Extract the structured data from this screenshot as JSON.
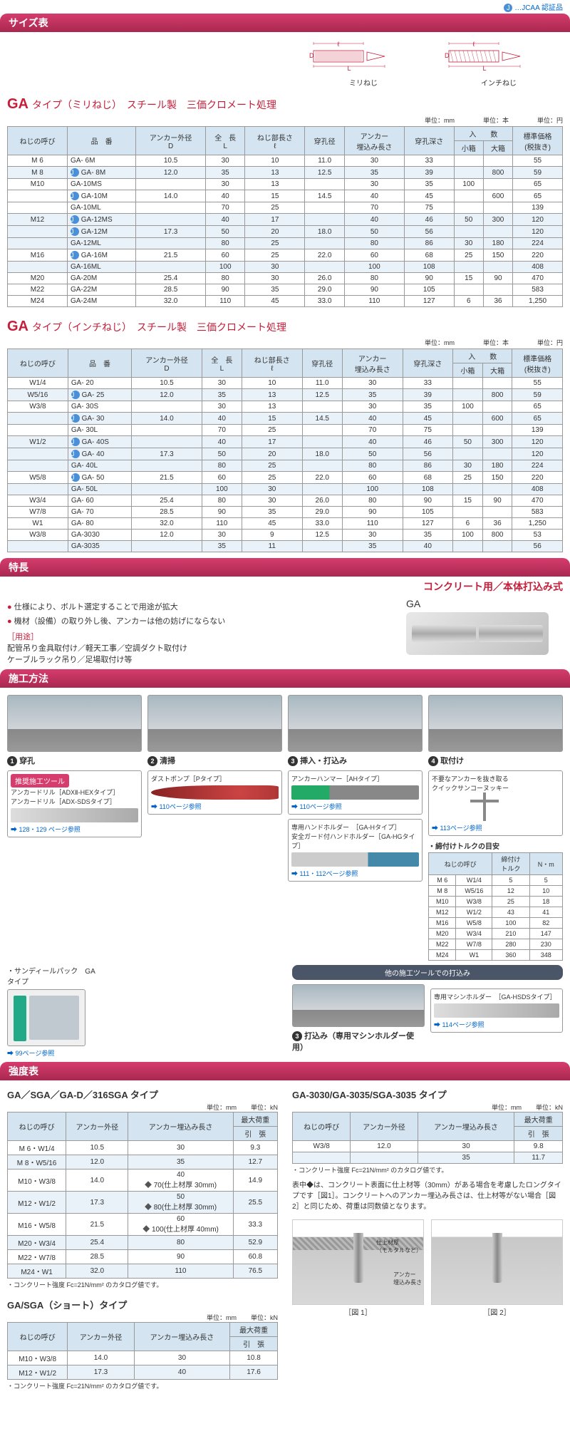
{
  "jcaa": "…JCAA 認証品",
  "sections": {
    "size": "サイズ表",
    "feature": "特長",
    "construction": "施工方法",
    "strength": "強度表"
  },
  "diagrams": {
    "metric": "ミリねじ",
    "inch": "インチねじ",
    "labels": {
      "l": "ℓ",
      "L": "L",
      "D": "D"
    }
  },
  "colors": {
    "brand": "#c41e3a",
    "headerBg1": "#d63c6d",
    "headerBg2": "#a82850",
    "thBg": "#d4e4f0",
    "altBg": "#eaf2f9"
  },
  "type1": {
    "ga": "GA",
    "sub": "タイプ（ミリねじ）　スチール製　三価クロメート処理"
  },
  "type2": {
    "ga": "GA",
    "sub": "タイプ（インチねじ）　スチール製　三価クロメート処理"
  },
  "units": {
    "mm": "単位：mm",
    "hon": "単位：本",
    "yen": "単位：円",
    "kn": "単位：kN"
  },
  "headers": [
    "ねじの呼び",
    "品　番",
    "アンカー外径\nD",
    "全　長\nL",
    "ねじ部長さ\nℓ",
    "穿孔径",
    "アンカー\n埋込み長さ",
    "穿孔深さ",
    "小箱",
    "大箱",
    "標準価格\n(税抜き)"
  ],
  "headers_nyu": "入　　数",
  "metric_rows": [
    [
      "M 6",
      "GA-  6M",
      "10.5",
      "30",
      "10",
      "11.0",
      "30",
      "33",
      "",
      "",
      "55"
    ],
    [
      "M 8",
      "GA-  8M",
      "12.0",
      "35",
      "13",
      "12.5",
      "35",
      "39",
      "",
      "800",
      "59"
    ],
    [
      "M10",
      "GA-10MS",
      "",
      "30",
      "13",
      "",
      "30",
      "35",
      "100",
      "",
      "65"
    ],
    [
      "",
      "GA-10M",
      "14.0",
      "40",
      "15",
      "14.5",
      "40",
      "45",
      "",
      "600",
      "65"
    ],
    [
      "",
      "GA-10ML",
      "",
      "70",
      "25",
      "",
      "70",
      "75",
      "",
      "",
      "139"
    ],
    [
      "M12",
      "GA-12MS",
      "",
      "40",
      "17",
      "",
      "40",
      "46",
      "50",
      "300",
      "120"
    ],
    [
      "",
      "GA-12M",
      "17.3",
      "50",
      "20",
      "18.0",
      "50",
      "56",
      "",
      "",
      "120"
    ],
    [
      "",
      "GA-12ML",
      "",
      "80",
      "25",
      "",
      "80",
      "86",
      "30",
      "180",
      "224"
    ],
    [
      "M16",
      "GA-16M",
      "21.5",
      "60",
      "25",
      "22.0",
      "60",
      "68",
      "25",
      "150",
      "220"
    ],
    [
      "",
      "GA-16ML",
      "",
      "100",
      "30",
      "",
      "100",
      "108",
      "",
      "",
      "408"
    ],
    [
      "M20",
      "GA-20M",
      "25.4",
      "80",
      "30",
      "26.0",
      "80",
      "90",
      "15",
      "90",
      "470"
    ],
    [
      "M22",
      "GA-22M",
      "28.5",
      "90",
      "35",
      "29.0",
      "90",
      "105",
      "",
      "",
      "583"
    ],
    [
      "M24",
      "GA-24M",
      "32.0",
      "110",
      "45",
      "33.0",
      "110",
      "127",
      "6",
      "36",
      "1,250"
    ]
  ],
  "metric_cert": [
    false,
    true,
    false,
    true,
    false,
    true,
    true,
    false,
    true,
    false,
    false,
    false,
    false
  ],
  "metric_alt": [
    false,
    true,
    false,
    false,
    false,
    true,
    true,
    true,
    false,
    true,
    false,
    false,
    false
  ],
  "inch_rows": [
    [
      "W1/4",
      "GA-   20",
      "10.5",
      "30",
      "10",
      "11.0",
      "30",
      "33",
      "",
      "",
      "55"
    ],
    [
      "W5/16",
      "GA-   25",
      "12.0",
      "35",
      "13",
      "12.5",
      "35",
      "39",
      "",
      "800",
      "59"
    ],
    [
      "W3/8",
      "GA-   30S",
      "",
      "30",
      "13",
      "",
      "30",
      "35",
      "100",
      "",
      "65"
    ],
    [
      "",
      "GA-   30",
      "14.0",
      "40",
      "15",
      "14.5",
      "40",
      "45",
      "",
      "600",
      "65"
    ],
    [
      "",
      "GA-   30L",
      "",
      "70",
      "25",
      "",
      "70",
      "75",
      "",
      "",
      "139"
    ],
    [
      "W1/2",
      "GA-   40S",
      "",
      "40",
      "17",
      "",
      "40",
      "46",
      "50",
      "300",
      "120"
    ],
    [
      "",
      "GA-   40",
      "17.3",
      "50",
      "20",
      "18.0",
      "50",
      "56",
      "",
      "",
      "120"
    ],
    [
      "",
      "GA-   40L",
      "",
      "80",
      "25",
      "",
      "80",
      "86",
      "30",
      "180",
      "224"
    ],
    [
      "W5/8",
      "GA-   50",
      "21.5",
      "60",
      "25",
      "22.0",
      "60",
      "68",
      "25",
      "150",
      "220"
    ],
    [
      "",
      "GA-   50L",
      "",
      "100",
      "30",
      "",
      "100",
      "108",
      "",
      "",
      "408"
    ],
    [
      "W3/4",
      "GA-   60",
      "25.4",
      "80",
      "30",
      "26.0",
      "80",
      "90",
      "15",
      "90",
      "470"
    ],
    [
      "W7/8",
      "GA-   70",
      "28.5",
      "90",
      "35",
      "29.0",
      "90",
      "105",
      "",
      "",
      "583"
    ],
    [
      "W1",
      "GA-   80",
      "32.0",
      "110",
      "45",
      "33.0",
      "110",
      "127",
      "6",
      "36",
      "1,250"
    ],
    [
      "W3/8",
      "GA-3030",
      "12.0",
      "30",
      "9",
      "12.5",
      "30",
      "35",
      "100",
      "800",
      "53"
    ],
    [
      "",
      "GA-3035",
      "",
      "35",
      "11",
      "",
      "35",
      "40",
      "",
      "",
      "56"
    ]
  ],
  "inch_cert": [
    false,
    true,
    false,
    true,
    false,
    true,
    true,
    false,
    true,
    false,
    false,
    false,
    false,
    false,
    false
  ],
  "inch_alt": [
    false,
    true,
    false,
    true,
    false,
    true,
    true,
    true,
    false,
    true,
    false,
    false,
    false,
    false,
    true
  ],
  "feature": {
    "red_header": "コンクリート用／本体打込み式",
    "lines": [
      "仕様により、ボルト選定することで用途が拡大",
      "機材（設備）の取り外し後、アンカーは他の妨げにならない"
    ],
    "usage_title": "［用途］",
    "usage1": "配管吊り金具取付け／軽天工事／空調ダクト取付け",
    "usage2": "ケーブルラック吊り／足場取付け等",
    "ga_label": "GA"
  },
  "construction": {
    "steps": [
      "穿孔",
      "清掃",
      "挿入・打込み",
      "取付け"
    ],
    "tool_header": "推奨施工ツール",
    "tools1": "アンカードリル［ADXⅡ-HEXタイプ］\nアンカードリル［ADX-SDSタイプ］",
    "ref1": "128・129 ページ参照",
    "tools2": "ダストポンプ［Pタイプ］",
    "ref2": "110ページ参照",
    "tools3": "アンカーハンマー［AHタイプ］",
    "ref3": "110ページ参照",
    "tools3b": "専用ハンドホルダー　［GA-Hタイプ］\n安全ガード付ハンドホルダー［GA-HGタイプ］",
    "ref3b": "111・112ページ参照",
    "tools4": "不要なアンカーを抜き取る\nクイックサンコーヌッキー",
    "ref4": "113ページ参照",
    "other_header": "他の施工ツールでの打込み",
    "tool_other": "専用マシンホルダー　［GA-HSDSタイプ］",
    "ref_other": "114ページ参照",
    "step3b": "打込み（専用マシンホルダー使用）",
    "pack_title": "・サンディールパック　GAタイプ",
    "pack_ref": "99ページ参照",
    "torque_title": "・締付けトルクの目安"
  },
  "torque": {
    "headers": [
      "ねじの呼び",
      "",
      "締付け\nトルク",
      "N・m"
    ],
    "rows": [
      [
        "M 6",
        "W1/4",
        "5",
        "5"
      ],
      [
        "M 8",
        "W5/16",
        "12",
        "10"
      ],
      [
        "M10",
        "W3/8",
        "25",
        "18"
      ],
      [
        "M12",
        "W1/2",
        "43",
        "41"
      ],
      [
        "M16",
        "W5/8",
        "100",
        "82"
      ],
      [
        "M20",
        "W3/4",
        "210",
        "147"
      ],
      [
        "M22",
        "W7/8",
        "280",
        "230"
      ],
      [
        "M24",
        "W1",
        "360",
        "348"
      ]
    ]
  },
  "strength1": {
    "title": "GA／SGA／GA-D／316SGA タイプ",
    "headers": [
      "ねじの呼び",
      "アンカー外径",
      "アンカー埋込み長さ",
      "最大荷重"
    ],
    "sub": "引　張",
    "rows": [
      [
        "M 6・W1/4",
        "10.5",
        "30",
        "9.3"
      ],
      [
        "M 8・W5/16",
        "12.0",
        "35",
        "12.7"
      ],
      [
        "M10・W3/8",
        "14.0",
        "40\n◆ 70(仕上材厚 30mm)",
        "14.9"
      ],
      [
        "M12・W1/2",
        "17.3",
        "50\n◆ 80(仕上材厚 30mm)",
        "25.5"
      ],
      [
        "M16・W5/8",
        "21.5",
        "60\n◆ 100(仕上材厚 40mm)",
        "33.3"
      ],
      [
        "M20・W3/4",
        "25.4",
        "80",
        "52.9"
      ],
      [
        "M22・W7/8",
        "28.5",
        "90",
        "60.8"
      ],
      [
        "M24・W1",
        "32.0",
        "110",
        "76.5"
      ]
    ],
    "note": "・コンクリート強度 Fc=21N/mm² のカタログ値です。"
  },
  "strength2": {
    "title": "GA-3030/GA-3035/SGA-3035 タイプ",
    "headers": [
      "ねじの呼び",
      "アンカー外径",
      "アンカー埋込み長さ",
      "最大荷重"
    ],
    "sub": "引　張",
    "rows": [
      [
        "W3/8",
        "12.0",
        "30",
        "9.8"
      ],
      [
        "",
        "",
        "35",
        "11.7"
      ]
    ],
    "note": "・コンクリート強度 Fc=21N/mm² のカタログ値です。",
    "info": "表中◆は、コンクリート表面に仕上材等（30mm）がある場合を考慮したロングタイプです［図1］。コンクリートへのアンカー埋込み長さは、仕上材等がない場合［図 2］と同じため、荷重は同数値となります。",
    "fig_labels": [
      "仕上材厚\n（モルタルなど）",
      "アンカー\n埋込み長さ"
    ],
    "figs": [
      "［図 1］",
      "［図 2］"
    ]
  },
  "strength3": {
    "title": "GA/SGA（ショート）タイプ",
    "headers": [
      "ねじの呼び",
      "アンカー外径",
      "アンカー埋込み長さ",
      "最大荷重"
    ],
    "sub": "引　張",
    "rows": [
      [
        "M10・W3/8",
        "14.0",
        "30",
        "10.8"
      ],
      [
        "M12・W1/2",
        "17.3",
        "40",
        "17.6"
      ]
    ],
    "note": "・コンクリート強度 Fc=21N/mm² のカタログ値です。"
  }
}
